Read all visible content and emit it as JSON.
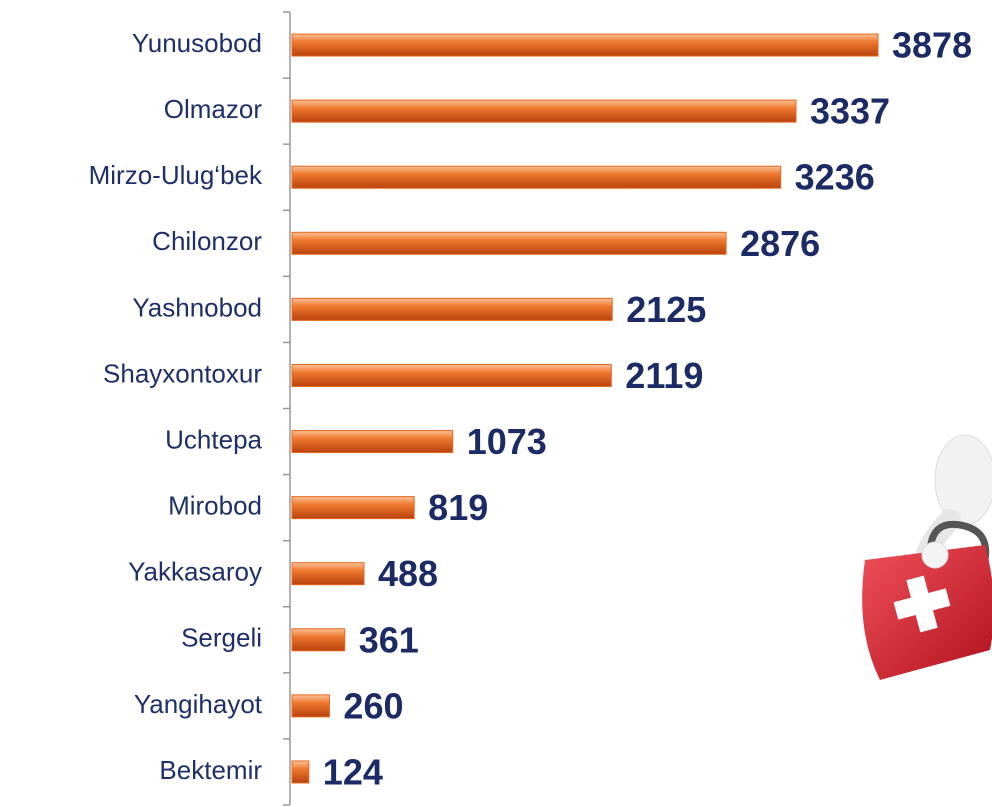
{
  "chart_data": {
    "type": "bar",
    "orientation": "horizontal",
    "categories": [
      "Yunusobod",
      "Olmazor",
      "Mirzo-Ulug‘bek",
      "Chilonzor",
      "Yashnobod",
      "Shayxontoxur",
      "Uchtepa",
      "Mirobod",
      "Yakkasaroy",
      "Sergeli",
      "Yangihayot",
      "Bektemir"
    ],
    "values": [
      3878,
      3337,
      3236,
      2876,
      2125,
      2119,
      1073,
      819,
      488,
      361,
      260,
      124
    ],
    "color": "#e8661c",
    "xlim": [
      0,
      4300
    ]
  }
}
